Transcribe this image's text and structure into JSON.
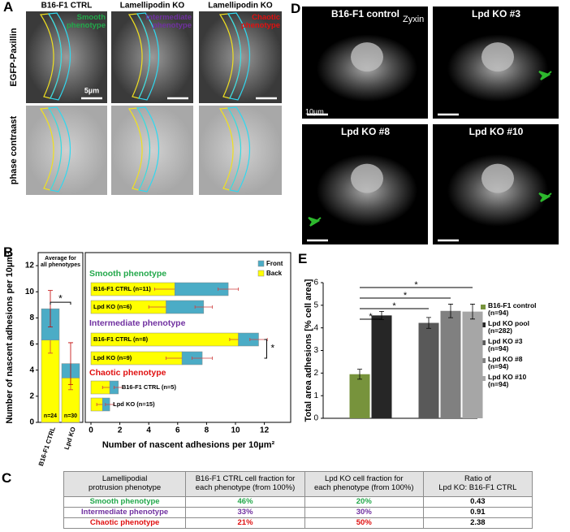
{
  "panel_labels": {
    "a": "A",
    "b": "B",
    "c": "C",
    "d": "D",
    "e": "E"
  },
  "panel_a": {
    "columns": [
      "B16-F1 CTRL",
      "Lamellipodin KO",
      "Lamellipodin KO"
    ],
    "phenotypes": [
      "Smooth\nphenotype",
      "Intermediate\nphenotype",
      "Chaotic\nphenotype"
    ],
    "phenotype_colors": [
      "#22a84a",
      "#7030a0",
      "#e01010"
    ],
    "rows": [
      "EGFP-Paxillin",
      "phase contraast"
    ],
    "scale_bar": "5µm"
  },
  "panel_d": {
    "titles": [
      "B16-F1 control",
      "Lpd KO #3",
      "Lpd KO #8",
      "Lpd KO #10"
    ],
    "stain": "Zyxin",
    "scale_bar": "10µm"
  },
  "chart_data": [
    {
      "type": "stacked-bar",
      "title": "Average for\nall phenotypes",
      "categories": [
        "B16-F1 CTRL",
        "Lpd KO"
      ],
      "ylabel": "Number of nascent adhesions per 10µm²",
      "ylim": [
        0,
        13
      ],
      "yticks": [
        0,
        2,
        4,
        6,
        8,
        10,
        12
      ],
      "series": [
        {
          "color": "#ffff00",
          "values": [
            6.3,
            3.4
          ],
          "errors": [
            1.0,
            0.9
          ]
        },
        {
          "color": "#4bacc6",
          "values": [
            2.4,
            1.1
          ],
          "errors": [
            1.4,
            1.6
          ]
        }
      ],
      "bar_labels": [
        "n=24",
        "n=30"
      ],
      "annotations": [
        "*"
      ]
    },
    {
      "type": "stacked-barh",
      "groups": [
        "Smooth phenotype",
        "Intermediate phenotype",
        "Chaotic phenotype"
      ],
      "group_colors": [
        "#22a84a",
        "#7030a0",
        "#e01010"
      ],
      "categories": [
        "B16-F1 CTRL (n=11)",
        "Lpd KO (n=6)",
        "B16-F1 CTRL (n=8)",
        "Lpd KO (n=9)",
        "B16-F1 CTRL (n=5)",
        "Lpd KO (n=15)"
      ],
      "xlabel": "Number of nascent adhesions per 10µm²",
      "xlim": [
        0,
        13
      ],
      "xticks": [
        0,
        2,
        4,
        6,
        8,
        10,
        12
      ],
      "series": [
        {
          "name": "Back",
          "color": "#ffff00",
          "values": [
            5.8,
            5.2,
            10.2,
            6.3,
            1.3,
            0.8
          ],
          "errors": [
            1.4,
            1.2,
            0.6,
            1.1,
            0.5,
            0.4
          ]
        },
        {
          "name": "Front",
          "color": "#4bacc6",
          "values": [
            3.7,
            2.6,
            1.4,
            1.4,
            0.6,
            0.5
          ],
          "errors": [
            0.7,
            0.6,
            0.6,
            0.7,
            0.3,
            0.3
          ]
        }
      ],
      "annotations": [
        "*"
      ]
    },
    {
      "type": "bar",
      "ylabel": "Total area adhesions [% cell area]",
      "ylim": [
        0,
        6
      ],
      "yticks": [
        0,
        1,
        2,
        3,
        4,
        5,
        6
      ],
      "series": [
        {
          "name": "B16-F1 control\n(n=94)",
          "color": "#77933c",
          "values": [
            1.95
          ],
          "errors": [
            0.22
          ]
        },
        {
          "name": "Lpd KO pool\n(n=282)",
          "color": "#262626",
          "values": [
            4.55
          ],
          "errors": [
            0.18
          ]
        },
        {
          "name": "Lpd KO #3\n(n=94)",
          "color": "#595959",
          "values": [
            4.22
          ],
          "errors": [
            0.24
          ]
        },
        {
          "name": "Lpd KO #8\n(n=94)",
          "color": "#808080",
          "values": [
            4.75
          ],
          "errors": [
            0.3
          ]
        },
        {
          "name": "Lpd KO #10\n(n=94)",
          "color": "#a6a6a6",
          "values": [
            4.72
          ],
          "errors": [
            0.33
          ]
        }
      ],
      "annotations": [
        "*",
        "*",
        "*",
        "*"
      ]
    }
  ],
  "table": {
    "header": [
      "Lamellipodial\nprotrusion phenotype",
      "B16-F1 CTRL cell fraction for\neach phenotype (from 100%)",
      "Lpd KO cell fraction for\neach phenotype (from 100%)",
      "Ratio of\nLpd KO: B16-F1 CTRL"
    ],
    "rows": [
      [
        "Smooth phenotype",
        "46%",
        "20%",
        "0.43"
      ],
      [
        "Intermediate phenotype",
        "33%",
        "30%",
        "0.91"
      ],
      [
        "Chaotic phenotype",
        "21%",
        "50%",
        "2.38"
      ]
    ]
  }
}
